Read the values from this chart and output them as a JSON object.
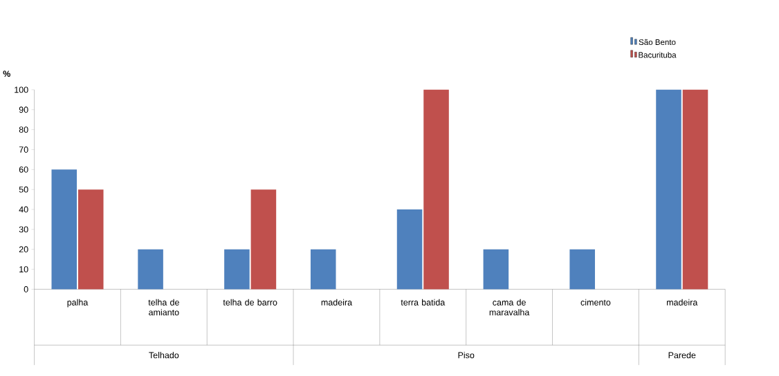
{
  "chart_data": {
    "type": "bar",
    "ylabel": "**%**",
    "categories": [
      "palha",
      "telha de amianto",
      "telha de barro",
      "madeira",
      "terra batida",
      "cama de maravalha",
      "cimento",
      "madeira"
    ],
    "series": [
      {
        "name": "São Bento",
        "color": "#4f81bd",
        "values": [
          60,
          20,
          20,
          20,
          40,
          20,
          20,
          100
        ]
      },
      {
        "name": "Bacurituba",
        "color": "#c0504d",
        "values": [
          50,
          0,
          50,
          0,
          100,
          0,
          0,
          100
        ]
      }
    ],
    "annotations": [
      "Telhado",
      "Piso",
      "Parede"
    ],
    "ylim": [
      0,
      100
    ],
    "yticks": [
      0,
      10,
      20,
      30,
      40,
      50,
      60,
      70,
      80,
      90,
      100
    ],
    "grid": false,
    "legend": "top right"
  }
}
